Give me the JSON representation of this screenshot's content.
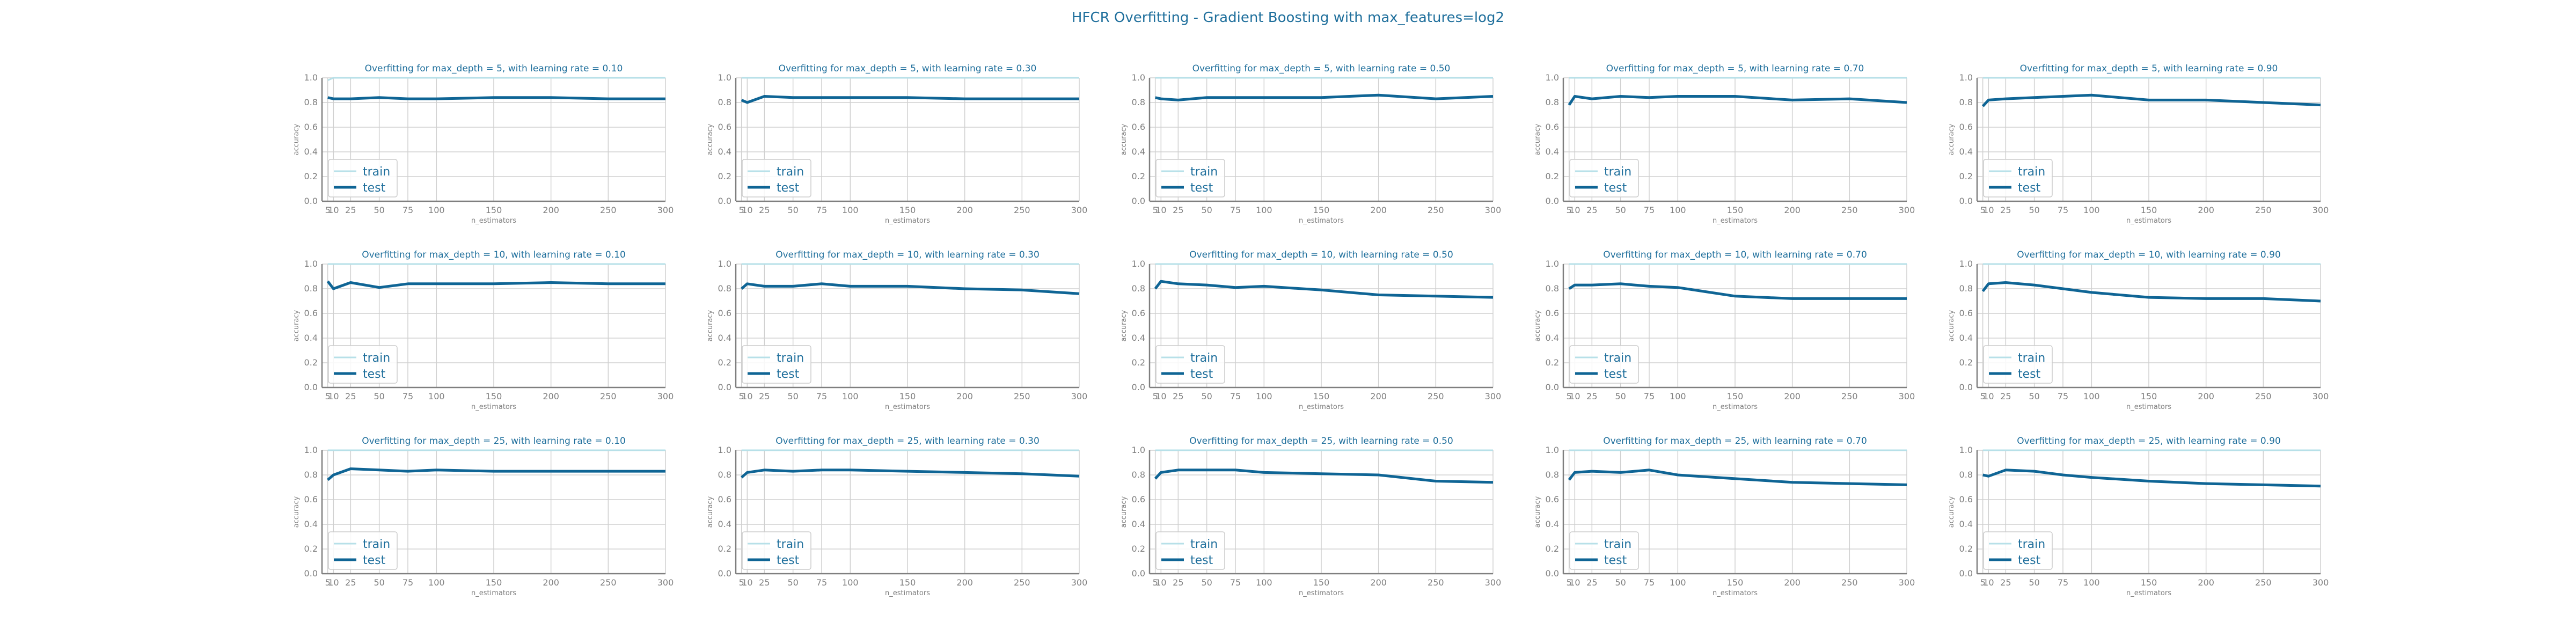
{
  "title": "HFCR Overfitting - Gradient Boosting with max_features=log2",
  "colors": {
    "train": "#b7e0e8",
    "test": "#0f6595",
    "grid": "#d0d0d0",
    "axis": "#7f7f7f",
    "text": "#1f6f9c"
  },
  "chart_data": [
    {
      "type": "line",
      "title": "Overfitting for max_depth = 5, with learning rate = 0.10",
      "xlabel": "n_estimators",
      "ylabel": "accuracy",
      "x": [
        5,
        10,
        25,
        50,
        75,
        100,
        150,
        200,
        250,
        300
      ],
      "xticks": [
        "5",
        "10",
        "25",
        "50",
        "75",
        "100",
        "150",
        "200",
        "250",
        "300"
      ],
      "ylim": [
        0,
        1
      ],
      "yticks": [
        "0.0",
        "0.2",
        "0.4",
        "0.6",
        "0.8",
        "1.0"
      ],
      "legend": "lower-left",
      "grid": true,
      "series": [
        {
          "name": "train",
          "values": [
            0.98,
            1.0,
            1.0,
            1.0,
            1.0,
            1.0,
            1.0,
            1.0,
            1.0,
            1.0
          ]
        },
        {
          "name": "test",
          "values": [
            0.84,
            0.83,
            0.83,
            0.84,
            0.83,
            0.83,
            0.84,
            0.84,
            0.83,
            0.83
          ]
        }
      ]
    },
    {
      "type": "line",
      "title": "Overfitting for max_depth = 5, with learning rate = 0.30",
      "xlabel": "n_estimators",
      "ylabel": "accuracy",
      "x": [
        5,
        10,
        25,
        50,
        75,
        100,
        150,
        200,
        250,
        300
      ],
      "xticks": [
        "5",
        "10",
        "25",
        "50",
        "75",
        "100",
        "150",
        "200",
        "250",
        "300"
      ],
      "ylim": [
        0,
        1
      ],
      "yticks": [
        "0.0",
        "0.2",
        "0.4",
        "0.6",
        "0.8",
        "1.0"
      ],
      "legend": "lower-left",
      "grid": true,
      "series": [
        {
          "name": "train",
          "values": [
            1.0,
            1.0,
            1.0,
            1.0,
            1.0,
            1.0,
            1.0,
            1.0,
            1.0,
            1.0
          ]
        },
        {
          "name": "test",
          "values": [
            0.82,
            0.8,
            0.85,
            0.84,
            0.84,
            0.84,
            0.84,
            0.83,
            0.83,
            0.83
          ]
        }
      ]
    },
    {
      "type": "line",
      "title": "Overfitting for max_depth = 5, with learning rate = 0.50",
      "xlabel": "n_estimators",
      "ylabel": "accuracy",
      "x": [
        5,
        10,
        25,
        50,
        75,
        100,
        150,
        200,
        250,
        300
      ],
      "xticks": [
        "5",
        "10",
        "25",
        "50",
        "75",
        "100",
        "150",
        "200",
        "250",
        "300"
      ],
      "ylim": [
        0,
        1
      ],
      "yticks": [
        "0.0",
        "0.2",
        "0.4",
        "0.6",
        "0.8",
        "1.0"
      ],
      "legend": "lower-left",
      "grid": true,
      "series": [
        {
          "name": "train",
          "values": [
            1.0,
            1.0,
            1.0,
            1.0,
            1.0,
            1.0,
            1.0,
            1.0,
            1.0,
            1.0
          ]
        },
        {
          "name": "test",
          "values": [
            0.84,
            0.83,
            0.82,
            0.84,
            0.84,
            0.84,
            0.84,
            0.86,
            0.83,
            0.85
          ]
        }
      ]
    },
    {
      "type": "line",
      "title": "Overfitting for max_depth = 5, with learning rate = 0.70",
      "xlabel": "n_estimators",
      "ylabel": "accuracy",
      "x": [
        5,
        10,
        25,
        50,
        75,
        100,
        150,
        200,
        250,
        300
      ],
      "xticks": [
        "5",
        "10",
        "25",
        "50",
        "75",
        "100",
        "150",
        "200",
        "250",
        "300"
      ],
      "ylim": [
        0,
        1
      ],
      "yticks": [
        "0.0",
        "0.2",
        "0.4",
        "0.6",
        "0.8",
        "1.0"
      ],
      "legend": "lower-left",
      "grid": true,
      "series": [
        {
          "name": "train",
          "values": [
            1.0,
            1.0,
            1.0,
            1.0,
            1.0,
            1.0,
            1.0,
            1.0,
            1.0,
            1.0
          ]
        },
        {
          "name": "test",
          "values": [
            0.78,
            0.85,
            0.83,
            0.85,
            0.84,
            0.85,
            0.85,
            0.82,
            0.83,
            0.8
          ]
        }
      ]
    },
    {
      "type": "line",
      "title": "Overfitting for max_depth = 5, with learning rate = 0.90",
      "xlabel": "n_estimators",
      "ylabel": "accuracy",
      "x": [
        5,
        10,
        25,
        50,
        75,
        100,
        150,
        200,
        250,
        300
      ],
      "xticks": [
        "5",
        "10",
        "25",
        "50",
        "75",
        "100",
        "150",
        "200",
        "250",
        "300"
      ],
      "ylim": [
        0,
        1
      ],
      "yticks": [
        "0.0",
        "0.2",
        "0.4",
        "0.6",
        "0.8",
        "1.0"
      ],
      "legend": "lower-left",
      "grid": true,
      "series": [
        {
          "name": "train",
          "values": [
            1.0,
            1.0,
            1.0,
            1.0,
            1.0,
            1.0,
            1.0,
            1.0,
            1.0,
            1.0
          ]
        },
        {
          "name": "test",
          "values": [
            0.77,
            0.82,
            0.83,
            0.84,
            0.85,
            0.86,
            0.82,
            0.82,
            0.8,
            0.78
          ]
        }
      ]
    },
    {
      "type": "line",
      "title": "Overfitting for max_depth = 10, with learning rate = 0.10",
      "xlabel": "n_estimators",
      "ylabel": "accuracy",
      "x": [
        5,
        10,
        25,
        50,
        75,
        100,
        150,
        200,
        250,
        300
      ],
      "xticks": [
        "5",
        "10",
        "25",
        "50",
        "75",
        "100",
        "150",
        "200",
        "250",
        "300"
      ],
      "ylim": [
        0,
        1
      ],
      "yticks": [
        "0.0",
        "0.2",
        "0.4",
        "0.6",
        "0.8",
        "1.0"
      ],
      "legend": "lower-left",
      "grid": true,
      "series": [
        {
          "name": "train",
          "values": [
            1.0,
            1.0,
            1.0,
            1.0,
            1.0,
            1.0,
            1.0,
            1.0,
            1.0,
            1.0
          ]
        },
        {
          "name": "test",
          "values": [
            0.86,
            0.8,
            0.85,
            0.81,
            0.84,
            0.84,
            0.84,
            0.85,
            0.84,
            0.84
          ]
        }
      ]
    },
    {
      "type": "line",
      "title": "Overfitting for max_depth = 10, with learning rate = 0.30",
      "xlabel": "n_estimators",
      "ylabel": "accuracy",
      "x": [
        5,
        10,
        25,
        50,
        75,
        100,
        150,
        200,
        250,
        300
      ],
      "xticks": [
        "5",
        "10",
        "25",
        "50",
        "75",
        "100",
        "150",
        "200",
        "250",
        "300"
      ],
      "ylim": [
        0,
        1
      ],
      "yticks": [
        "0.0",
        "0.2",
        "0.4",
        "0.6",
        "0.8",
        "1.0"
      ],
      "legend": "lower-left",
      "grid": true,
      "series": [
        {
          "name": "train",
          "values": [
            1.0,
            1.0,
            1.0,
            1.0,
            1.0,
            1.0,
            1.0,
            1.0,
            1.0,
            1.0
          ]
        },
        {
          "name": "test",
          "values": [
            0.8,
            0.84,
            0.82,
            0.82,
            0.84,
            0.82,
            0.82,
            0.8,
            0.79,
            0.76
          ]
        }
      ]
    },
    {
      "type": "line",
      "title": "Overfitting for max_depth = 10, with learning rate = 0.50",
      "xlabel": "n_estimators",
      "ylabel": "accuracy",
      "x": [
        5,
        10,
        25,
        50,
        75,
        100,
        150,
        200,
        250,
        300
      ],
      "xticks": [
        "5",
        "10",
        "25",
        "50",
        "75",
        "100",
        "150",
        "200",
        "250",
        "300"
      ],
      "ylim": [
        0,
        1
      ],
      "yticks": [
        "0.0",
        "0.2",
        "0.4",
        "0.6",
        "0.8",
        "1.0"
      ],
      "legend": "lower-left",
      "grid": true,
      "series": [
        {
          "name": "train",
          "values": [
            1.0,
            1.0,
            1.0,
            1.0,
            1.0,
            1.0,
            1.0,
            1.0,
            1.0,
            1.0
          ]
        },
        {
          "name": "test",
          "values": [
            0.8,
            0.86,
            0.84,
            0.83,
            0.81,
            0.82,
            0.79,
            0.75,
            0.74,
            0.73
          ]
        }
      ]
    },
    {
      "type": "line",
      "title": "Overfitting for max_depth = 10, with learning rate = 0.70",
      "xlabel": "n_estimators",
      "ylabel": "accuracy",
      "x": [
        5,
        10,
        25,
        50,
        75,
        100,
        150,
        200,
        250,
        300
      ],
      "xticks": [
        "5",
        "10",
        "25",
        "50",
        "75",
        "100",
        "150",
        "200",
        "250",
        "300"
      ],
      "ylim": [
        0,
        1
      ],
      "yticks": [
        "0.0",
        "0.2",
        "0.4",
        "0.6",
        "0.8",
        "1.0"
      ],
      "legend": "lower-left",
      "grid": true,
      "series": [
        {
          "name": "train",
          "values": [
            1.0,
            1.0,
            1.0,
            1.0,
            1.0,
            1.0,
            1.0,
            1.0,
            1.0,
            1.0
          ]
        },
        {
          "name": "test",
          "values": [
            0.8,
            0.83,
            0.83,
            0.84,
            0.82,
            0.81,
            0.74,
            0.72,
            0.72,
            0.72
          ]
        }
      ]
    },
    {
      "type": "line",
      "title": "Overfitting for max_depth = 10, with learning rate = 0.90",
      "xlabel": "n_estimators",
      "ylabel": "accuracy",
      "x": [
        5,
        10,
        25,
        50,
        75,
        100,
        150,
        200,
        250,
        300
      ],
      "xticks": [
        "5",
        "10",
        "25",
        "50",
        "75",
        "100",
        "150",
        "200",
        "250",
        "300"
      ],
      "ylim": [
        0,
        1
      ],
      "yticks": [
        "0.0",
        "0.2",
        "0.4",
        "0.6",
        "0.8",
        "1.0"
      ],
      "legend": "lower-left",
      "grid": true,
      "series": [
        {
          "name": "train",
          "values": [
            1.0,
            1.0,
            1.0,
            1.0,
            1.0,
            1.0,
            1.0,
            1.0,
            1.0,
            1.0
          ]
        },
        {
          "name": "test",
          "values": [
            0.78,
            0.84,
            0.85,
            0.83,
            0.8,
            0.77,
            0.73,
            0.72,
            0.72,
            0.7
          ]
        }
      ]
    },
    {
      "type": "line",
      "title": "Overfitting for max_depth = 25, with learning rate = 0.10",
      "xlabel": "n_estimators",
      "ylabel": "accuracy",
      "x": [
        5,
        10,
        25,
        50,
        75,
        100,
        150,
        200,
        250,
        300
      ],
      "xticks": [
        "5",
        "10",
        "25",
        "50",
        "75",
        "100",
        "150",
        "200",
        "250",
        "300"
      ],
      "ylim": [
        0,
        1
      ],
      "yticks": [
        "0.0",
        "0.2",
        "0.4",
        "0.6",
        "0.8",
        "1.0"
      ],
      "legend": "lower-left",
      "grid": true,
      "series": [
        {
          "name": "train",
          "values": [
            1.0,
            1.0,
            1.0,
            1.0,
            1.0,
            1.0,
            1.0,
            1.0,
            1.0,
            1.0
          ]
        },
        {
          "name": "test",
          "values": [
            0.76,
            0.8,
            0.85,
            0.84,
            0.83,
            0.84,
            0.83,
            0.83,
            0.83,
            0.83
          ]
        }
      ]
    },
    {
      "type": "line",
      "title": "Overfitting for max_depth = 25, with learning rate = 0.30",
      "xlabel": "n_estimators",
      "ylabel": "accuracy",
      "x": [
        5,
        10,
        25,
        50,
        75,
        100,
        150,
        200,
        250,
        300
      ],
      "xticks": [
        "5",
        "10",
        "25",
        "50",
        "75",
        "100",
        "150",
        "200",
        "250",
        "300"
      ],
      "ylim": [
        0,
        1
      ],
      "yticks": [
        "0.0",
        "0.2",
        "0.4",
        "0.6",
        "0.8",
        "1.0"
      ],
      "legend": "lower-left",
      "grid": true,
      "series": [
        {
          "name": "train",
          "values": [
            1.0,
            1.0,
            1.0,
            1.0,
            1.0,
            1.0,
            1.0,
            1.0,
            1.0,
            1.0
          ]
        },
        {
          "name": "test",
          "values": [
            0.78,
            0.82,
            0.84,
            0.83,
            0.84,
            0.84,
            0.83,
            0.82,
            0.81,
            0.79
          ]
        }
      ]
    },
    {
      "type": "line",
      "title": "Overfitting for max_depth = 25, with learning rate = 0.50",
      "xlabel": "n_estimators",
      "ylabel": "accuracy",
      "x": [
        5,
        10,
        25,
        50,
        75,
        100,
        150,
        200,
        250,
        300
      ],
      "xticks": [
        "5",
        "10",
        "25",
        "50",
        "75",
        "100",
        "150",
        "200",
        "250",
        "300"
      ],
      "ylim": [
        0,
        1
      ],
      "yticks": [
        "0.0",
        "0.2",
        "0.4",
        "0.6",
        "0.8",
        "1.0"
      ],
      "legend": "lower-left",
      "grid": true,
      "series": [
        {
          "name": "train",
          "values": [
            1.0,
            1.0,
            1.0,
            1.0,
            1.0,
            1.0,
            1.0,
            1.0,
            1.0,
            1.0
          ]
        },
        {
          "name": "test",
          "values": [
            0.77,
            0.82,
            0.84,
            0.84,
            0.84,
            0.82,
            0.81,
            0.8,
            0.75,
            0.74
          ]
        }
      ]
    },
    {
      "type": "line",
      "title": "Overfitting for max_depth = 25, with learning rate = 0.70",
      "xlabel": "n_estimators",
      "ylabel": "accuracy",
      "x": [
        5,
        10,
        25,
        50,
        75,
        100,
        150,
        200,
        250,
        300
      ],
      "xticks": [
        "5",
        "10",
        "25",
        "50",
        "75",
        "100",
        "150",
        "200",
        "250",
        "300"
      ],
      "ylim": [
        0,
        1
      ],
      "yticks": [
        "0.0",
        "0.2",
        "0.4",
        "0.6",
        "0.8",
        "1.0"
      ],
      "legend": "lower-left",
      "grid": true,
      "series": [
        {
          "name": "train",
          "values": [
            1.0,
            1.0,
            1.0,
            1.0,
            1.0,
            1.0,
            1.0,
            1.0,
            1.0,
            1.0
          ]
        },
        {
          "name": "test",
          "values": [
            0.76,
            0.82,
            0.83,
            0.82,
            0.84,
            0.8,
            0.77,
            0.74,
            0.73,
            0.72
          ]
        }
      ]
    },
    {
      "type": "line",
      "title": "Overfitting for max_depth = 25, with learning rate = 0.90",
      "xlabel": "n_estimators",
      "ylabel": "accuracy",
      "x": [
        5,
        10,
        25,
        50,
        75,
        100,
        150,
        200,
        250,
        300
      ],
      "xticks": [
        "5",
        "10",
        "25",
        "50",
        "75",
        "100",
        "150",
        "200",
        "250",
        "300"
      ],
      "ylim": [
        0,
        1
      ],
      "yticks": [
        "0.0",
        "0.2",
        "0.4",
        "0.6",
        "0.8",
        "1.0"
      ],
      "legend": "lower-left",
      "grid": true,
      "series": [
        {
          "name": "train",
          "values": [
            1.0,
            1.0,
            1.0,
            1.0,
            1.0,
            1.0,
            1.0,
            1.0,
            1.0,
            1.0
          ]
        },
        {
          "name": "test",
          "values": [
            0.8,
            0.79,
            0.84,
            0.83,
            0.8,
            0.78,
            0.75,
            0.73,
            0.72,
            0.71
          ]
        }
      ]
    }
  ]
}
